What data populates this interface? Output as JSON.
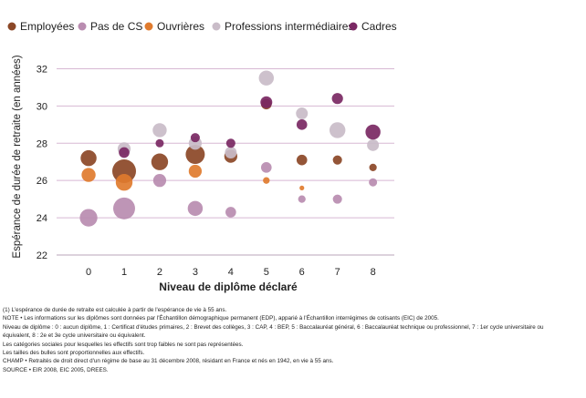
{
  "chart_data": {
    "type": "scatter",
    "title": "",
    "ylabel": "Espérance de durée de retraite (en années)",
    "xlabel": "Niveau de diplôme déclaré",
    "ylim": [
      22,
      33
    ],
    "xlim": [
      -0.9,
      8.6
    ],
    "yticks": [
      22,
      24,
      26,
      28,
      30,
      32
    ],
    "xticks": [
      0,
      1,
      2,
      3,
      4,
      5,
      6,
      7,
      8
    ],
    "grid": "horizontal",
    "legend_position": "top",
    "bubble_size_meaning": "proportional to group size",
    "series": [
      {
        "name": "Employées",
        "color": "#8b4726",
        "points": [
          {
            "x": 0,
            "y": 27.2,
            "size": 0.45
          },
          {
            "x": 1,
            "y": 26.5,
            "size": 1.0
          },
          {
            "x": 2,
            "y": 27.0,
            "size": 0.5
          },
          {
            "x": 3,
            "y": 27.4,
            "size": 0.65
          },
          {
            "x": 4,
            "y": 27.3,
            "size": 0.3
          },
          {
            "x": 5,
            "y": 30.1,
            "size": 0.2
          },
          {
            "x": 6,
            "y": 27.1,
            "size": 0.2
          },
          {
            "x": 7,
            "y": 27.1,
            "size": 0.15
          },
          {
            "x": 8,
            "y": 26.7,
            "size": 0.1
          }
        ]
      },
      {
        "name": "Pas de CS",
        "color": "#b98cb0",
        "points": [
          {
            "x": 0,
            "y": 24.0,
            "size": 0.55
          },
          {
            "x": 1,
            "y": 24.5,
            "size": 0.85
          },
          {
            "x": 2,
            "y": 26.0,
            "size": 0.3
          },
          {
            "x": 3,
            "y": 24.5,
            "size": 0.4
          },
          {
            "x": 4,
            "y": 24.3,
            "size": 0.2
          },
          {
            "x": 5,
            "y": 26.7,
            "size": 0.2
          },
          {
            "x": 6,
            "y": 25.0,
            "size": 0.1
          },
          {
            "x": 7,
            "y": 25.0,
            "size": 0.15
          },
          {
            "x": 8,
            "y": 25.9,
            "size": 0.12
          }
        ]
      },
      {
        "name": "Ouvrières",
        "color": "#e07b2e",
        "points": [
          {
            "x": 0,
            "y": 26.3,
            "size": 0.35
          },
          {
            "x": 1,
            "y": 25.9,
            "size": 0.5
          },
          {
            "x": 3,
            "y": 26.5,
            "size": 0.3
          },
          {
            "x": 5,
            "y": 26.0,
            "size": 0.08
          },
          {
            "x": 6,
            "y": 25.6,
            "size": 0.04
          }
        ]
      },
      {
        "name": "Professions intermédiaires",
        "color": "#c9bcc8",
        "points": [
          {
            "x": 1,
            "y": 27.7,
            "size": 0.3
          },
          {
            "x": 2,
            "y": 28.7,
            "size": 0.35
          },
          {
            "x": 3,
            "y": 28.0,
            "size": 0.3
          },
          {
            "x": 4,
            "y": 27.5,
            "size": 0.25
          },
          {
            "x": 5,
            "y": 31.5,
            "size": 0.4
          },
          {
            "x": 6,
            "y": 29.6,
            "size": 0.25
          },
          {
            "x": 7,
            "y": 28.7,
            "size": 0.45
          },
          {
            "x": 8,
            "y": 27.9,
            "size": 0.25
          }
        ]
      },
      {
        "name": "Cadres",
        "color": "#7a2863",
        "points": [
          {
            "x": 1,
            "y": 27.5,
            "size": 0.2
          },
          {
            "x": 2,
            "y": 28.0,
            "size": 0.12
          },
          {
            "x": 3,
            "y": 28.3,
            "size": 0.15
          },
          {
            "x": 4,
            "y": 28.0,
            "size": 0.15
          },
          {
            "x": 5,
            "y": 30.2,
            "size": 0.25
          },
          {
            "x": 6,
            "y": 29.0,
            "size": 0.2
          },
          {
            "x": 7,
            "y": 30.4,
            "size": 0.22
          },
          {
            "x": 8,
            "y": 28.6,
            "size": 0.4
          }
        ]
      }
    ]
  },
  "notes": [
    "(1) L'espérance de durée de retraite est calculée à partir de l'espérance de vie à 55 ans.",
    "NOTE • Les informations sur les diplômes sont données par l'Échantillon démographique permanent (EDP), apparié à l'Échantillon interrégimes de cotisants (EIC) de 2005.",
    "Niveau de diplôme : 0 : aucun diplôme, 1 : Certificat d'études primaires, 2 : Brevet des collèges, 3 : CAP, 4 : BEP, 5 : Baccalauréat général, 6 : Baccalauréat technique ou professionnel, 7 : 1er cycle universitaire ou",
    "équivalent, 8 : 2e et 3e cycle universitaire ou équivalent.",
    "Les catégories sociales pour lesquelles les effectifs sont trop faibles ne sont pas représentées.",
    "Les tailles des bulles sont proportionnelles aux effectifs.",
    "CHAMP • Retraités de droit direct d'un régime de base au 31 décembre 2008, résidant en France et nés en 1942, en vie à 55 ans.",
    "SOURCE • EIR 2008, EIC 2005, DREES."
  ]
}
